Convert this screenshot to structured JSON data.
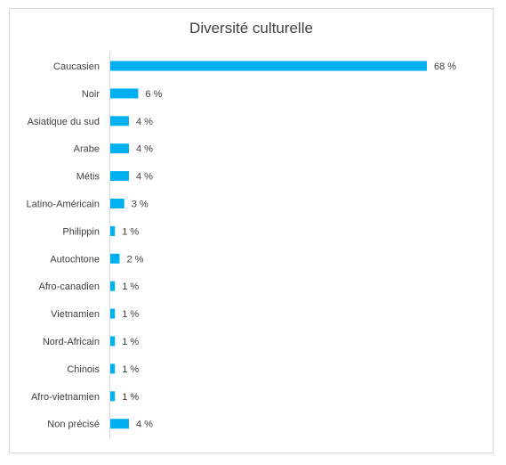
{
  "chart_data": {
    "type": "bar",
    "orientation": "horizontal",
    "title": "Diversité culturelle",
    "categories": [
      "Caucasien",
      "Noir",
      "Asiatique du sud",
      "Arabe",
      "Métis",
      "Latino-Américain",
      "Philippin",
      "Autochtone",
      "Afro-canadien",
      "Vietnamien",
      "Nord-Africain",
      "Chinois",
      "Afro-vietnamien",
      "Non précisé"
    ],
    "values": [
      68,
      6,
      4,
      4,
      4,
      3,
      1,
      2,
      1,
      1,
      1,
      1,
      1,
      4
    ],
    "data_labels": [
      "68 %",
      "6 %",
      "4 %",
      "4 %",
      "4 %",
      "3 %",
      "1 %",
      "2 %",
      "1 %",
      "1 %",
      "1 %",
      "1 %",
      "1 %",
      "4 %"
    ],
    "xlim": [
      0,
      68
    ],
    "grid": false,
    "legend": "none",
    "colors": {
      "bar": "#00b0f0",
      "text": "#404040",
      "axis": "#d9d9d9",
      "border": "#d9d9d9"
    }
  }
}
